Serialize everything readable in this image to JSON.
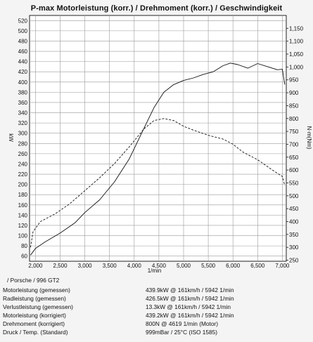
{
  "chart_data": {
    "type": "line",
    "title": "P-max Motorleistung (korr.) / Drehmoment (korr.) / Geschwindigkeit",
    "xlabel": "1/min",
    "ylabel_left": "kW",
    "ylabel_right": "N·m(Nm)",
    "x_ticks": [
      "2,000",
      "2,500",
      "3,000",
      "3,500",
      "4,000",
      "4,500",
      "5,000",
      "5,500",
      "6,000",
      "6,500",
      "7,000"
    ],
    "x_tick_values": [
      2000,
      2500,
      3000,
      3500,
      4000,
      4500,
      5000,
      5500,
      6000,
      6500,
      7000
    ],
    "y_left_ticks": [
      "60",
      "80",
      "100",
      "120",
      "140",
      "160",
      "180",
      "200",
      "220",
      "240",
      "260",
      "280",
      "300",
      "320",
      "340",
      "360",
      "380",
      "400",
      "420",
      "440",
      "460",
      "480",
      "500",
      "520"
    ],
    "y_right_ticks": [
      "250",
      "300",
      "350",
      "400",
      "450",
      "500",
      "550",
      "600",
      "650",
      "700",
      "750",
      "800",
      "850",
      "900",
      "950",
      "1,000",
      "1,050",
      "1,100",
      "1,150"
    ],
    "xlim": [
      1880,
      7080
    ],
    "ylim_left": [
      50,
      530
    ],
    "ylim_right": [
      246,
      1200
    ],
    "grid": true,
    "series": [
      {
        "axis": "left",
        "style": "solid",
        "x": [
          1900,
          2000,
          2200,
          2500,
          2800,
          3000,
          3300,
          3600,
          3900,
          4200,
          4400,
          4600,
          4800,
          5000,
          5200,
          5400,
          5600,
          5800,
          5950,
          6100,
          6300,
          6500,
          6700,
          6900,
          7000,
          7050
        ],
        "y": [
          62,
          75,
          88,
          105,
          125,
          145,
          170,
          205,
          250,
          310,
          350,
          380,
          395,
          403,
          408,
          415,
          420,
          432,
          437,
          434,
          427,
          436,
          430,
          424,
          425,
          395
        ]
      },
      {
        "axis": "right",
        "style": "dashed",
        "x": [
          1900,
          1950,
          2100,
          2400,
          2700,
          3000,
          3300,
          3600,
          3900,
          4200,
          4400,
          4600,
          4800,
          5000,
          5200,
          5500,
          5800,
          6000,
          6200,
          6500,
          6800,
          7000,
          7050
        ],
        "y": [
          300,
          360,
          400,
          430,
          470,
          520,
          570,
          625,
          690,
          760,
          792,
          800,
          792,
          770,
          755,
          735,
          720,
          700,
          670,
          640,
          600,
          575,
          540
        ]
      }
    ]
  },
  "info": {
    "car": "/ Porsche / 996 GT2",
    "rows": [
      {
        "label": "Motorleistung (gemessen)",
        "value": "439.9kW @ 161km/h / 5942 1/min"
      },
      {
        "label": "Radleistung (gemessen)",
        "value": "426.5kW @ 161km/h / 5942 1/min"
      },
      {
        "label": "Verlustleistung (gemessen)",
        "value": "13.3kW @ 161km/h / 5942 1/min"
      },
      {
        "label": "Motorleistung (korrigiert)",
        "value": "439.2kW @ 161km/h / 5942 1/min"
      },
      {
        "label": "Drehmoment (korrigiert)",
        "value": "800N @ 4619 1/min (Motor)"
      },
      {
        "label": "Druck / Temp. (Standard)",
        "value": "999mBar / 25°C     (ISO 1585)"
      }
    ]
  }
}
